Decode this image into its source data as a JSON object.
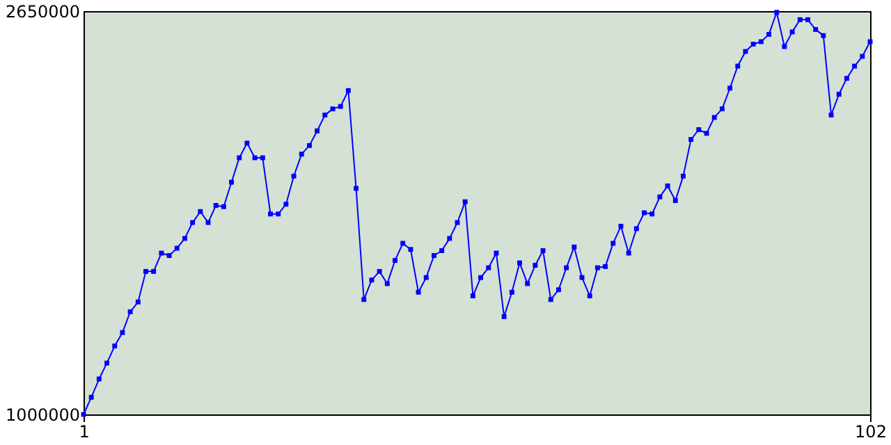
{
  "chart_data": {
    "type": "line",
    "x": [
      1,
      2,
      3,
      4,
      5,
      6,
      7,
      8,
      9,
      10,
      11,
      12,
      13,
      14,
      15,
      16,
      17,
      18,
      19,
      20,
      21,
      22,
      23,
      24,
      25,
      26,
      27,
      28,
      29,
      30,
      31,
      32,
      33,
      34,
      35,
      36,
      37,
      38,
      39,
      40,
      41,
      42,
      43,
      44,
      45,
      46,
      47,
      48,
      49,
      50,
      51,
      52,
      53,
      54,
      55,
      56,
      57,
      58,
      59,
      60,
      61,
      62,
      63,
      64,
      65,
      66,
      67,
      68,
      69,
      70,
      71,
      72,
      73,
      74,
      75,
      76,
      77,
      78,
      79,
      80,
      81,
      82,
      83,
      84,
      85,
      86,
      87,
      88,
      89,
      90,
      91,
      92,
      93,
      94,
      95,
      96,
      97,
      98,
      99,
      100,
      101,
      102
    ],
    "series": [
      {
        "color": "#0000ff",
        "values": [
          1000000,
          1070000,
          1145000,
          1210000,
          1280000,
          1335000,
          1420000,
          1460000,
          1585000,
          1585000,
          1660000,
          1650000,
          1680000,
          1720000,
          1785000,
          1830000,
          1785000,
          1855000,
          1850000,
          1950000,
          2050000,
          2110000,
          2050000,
          2050000,
          1820000,
          1820000,
          1860000,
          1975000,
          2065000,
          2100000,
          2160000,
          2225000,
          2250000,
          2260000,
          2325000,
          1925000,
          1470000,
          1550000,
          1585000,
          1535000,
          1630000,
          1700000,
          1675000,
          1500000,
          1560000,
          1650000,
          1670000,
          1720000,
          1785000,
          1870000,
          1485000,
          1560000,
          1600000,
          1660000,
          1400000,
          1500000,
          1620000,
          1535000,
          1610000,
          1670000,
          1470000,
          1510000,
          1600000,
          1685000,
          1560000,
          1485000,
          1600000,
          1605000,
          1700000,
          1770000,
          1660000,
          1760000,
          1825000,
          1820000,
          1890000,
          1935000,
          1875000,
          1975000,
          2125000,
          2165000,
          2150000,
          2215000,
          2250000,
          2335000,
          2425000,
          2485000,
          2515000,
          2525000,
          2555000,
          2645000,
          2505000,
          2565000,
          2615000,
          2615000,
          2575000,
          2550000,
          2225000,
          2310000,
          2375000,
          2425000,
          2465000,
          2525000
        ]
      }
    ],
    "xlim": [
      1,
      102
    ],
    "xticks": [
      1,
      102
    ],
    "ylim": [
      1000000,
      2650000
    ],
    "yticks": [
      1000000,
      2650000
    ],
    "grid": false,
    "legend": false,
    "marker": "square",
    "line_style": "solid"
  }
}
